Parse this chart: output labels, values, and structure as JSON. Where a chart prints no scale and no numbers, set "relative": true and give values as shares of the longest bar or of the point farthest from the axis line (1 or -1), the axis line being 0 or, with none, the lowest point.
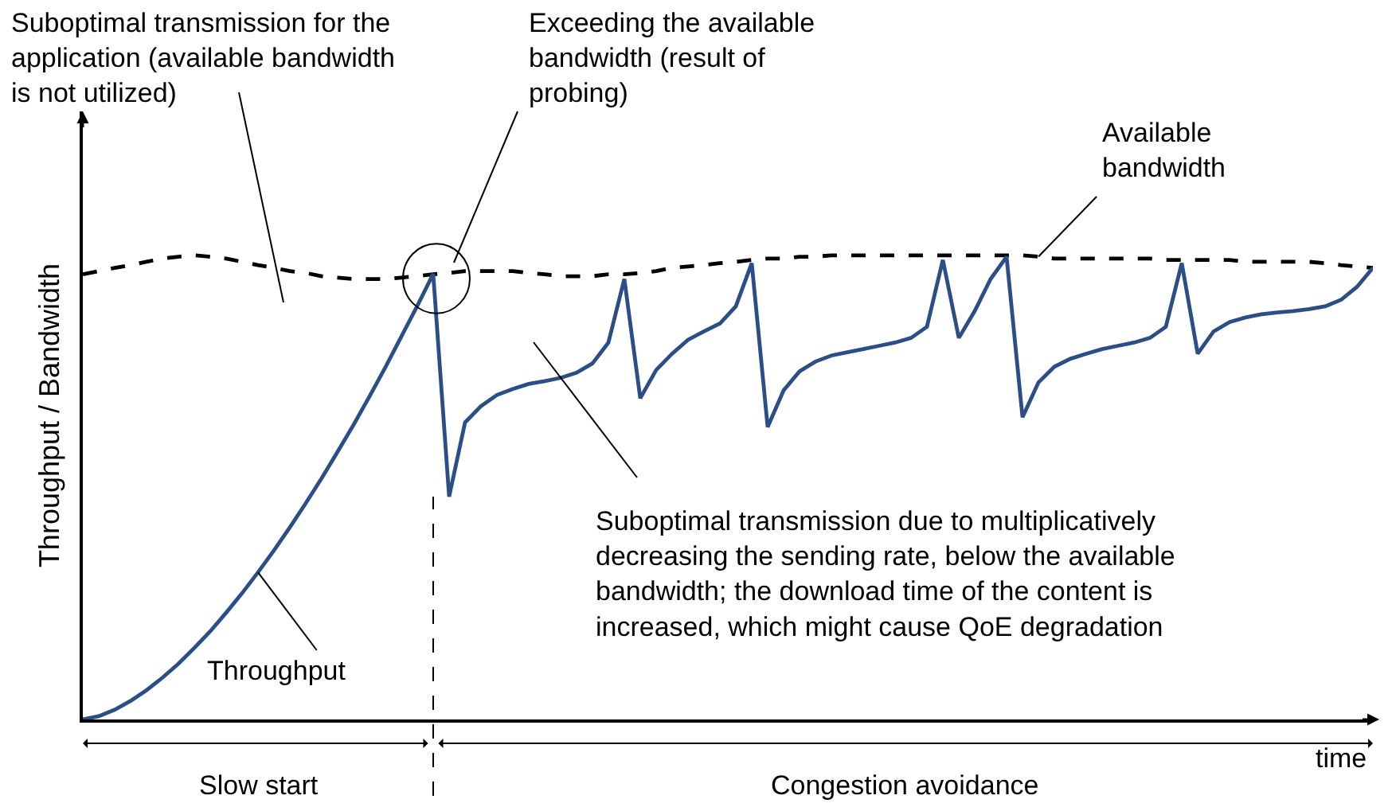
{
  "chart_data": {
    "type": "line",
    "relative": true,
    "legend": false,
    "xlabel": "time",
    "ylabel": "Throughput / Bandwidth",
    "categories": [
      null,
      null,
      null,
      null,
      null,
      null,
      null,
      null,
      null,
      null,
      null,
      null,
      null,
      null,
      null,
      null,
      null,
      null,
      null,
      null,
      null,
      null,
      null,
      null,
      null,
      null,
      null,
      null,
      null,
      null,
      null,
      null,
      null,
      null,
      null,
      null,
      null,
      null,
      null,
      null,
      null,
      null,
      null,
      null,
      null,
      null,
      null,
      null,
      null,
      null,
      null,
      null,
      null,
      null,
      null,
      null,
      null,
      null,
      null,
      null,
      null,
      null,
      null,
      null,
      null,
      null,
      null,
      null,
      null,
      null,
      null,
      null,
      null,
      null,
      null,
      null,
      null,
      null,
      null,
      null,
      null,
      null
    ],
    "series": [
      {
        "name": "Available bandwidth",
        "color": "#000000",
        "line_style": "dashed",
        "values": [
          0.959,
          0.966,
          0.973,
          0.979,
          0.986,
          0.993,
          0.997,
          1,
          0.997,
          0.993,
          0.986,
          0.979,
          0.973,
          0.966,
          0.962,
          0.955,
          0.952,
          0.949,
          0.949,
          0.949,
          0.952,
          0.955,
          0.959,
          0.962,
          0.966,
          0.966,
          0.966,
          0.966,
          0.962,
          0.959,
          0.955,
          0.955,
          0.955,
          0.959,
          0.959,
          0.962,
          0.966,
          0.973,
          0.976,
          0.979,
          0.983,
          0.986,
          0.99,
          0.993,
          0.993,
          0.997,
          0.997,
          1,
          1,
          1,
          1,
          1,
          1,
          1,
          1,
          1,
          1,
          1,
          1,
          1,
          0.997,
          0.993,
          0.993,
          0.993,
          0.993,
          0.993,
          0.993,
          0.993,
          0.99,
          0.99,
          0.99,
          0.99,
          0.99,
          0.986,
          0.986,
          0.986,
          0.986,
          0.986,
          0.983,
          0.979,
          0.976,
          0.973
        ]
      },
      {
        "name": "Throughput",
        "color": "#2b4e86",
        "line_style": "solid",
        "values": [
          0,
          0.007,
          0.021,
          0.04,
          0.063,
          0.09,
          0.12,
          0.154,
          0.19,
          0.23,
          0.272,
          0.317,
          0.364,
          0.414,
          0.466,
          0.52,
          0.577,
          0.635,
          0.696,
          0.759,
          0.825,
          0.891,
          0.96,
          0.48,
          0.64,
          0.675,
          0.699,
          0.712,
          0.723,
          0.729,
          0.736,
          0.747,
          0.767,
          0.812,
          0.949,
          0.692,
          0.753,
          0.788,
          0.818,
          0.836,
          0.853,
          0.89,
          0.983,
          0.63,
          0.709,
          0.75,
          0.771,
          0.784,
          0.791,
          0.798,
          0.805,
          0.812,
          0.822,
          0.846,
          0.99,
          0.822,
          0.88,
          0.949,
          0.997,
          0.651,
          0.726,
          0.76,
          0.777,
          0.788,
          0.798,
          0.805,
          0.812,
          0.822,
          0.846,
          0.983,
          0.788,
          0.836,
          0.856,
          0.866,
          0.873,
          0.877,
          0.88,
          0.884,
          0.89,
          0.904,
          0.932,
          0.973
        ]
      }
    ],
    "annotations": [
      "Suboptimal transmission for the application (available bandwidth is not utilized)",
      "Exceeding the available bandwidth (result of probing)",
      "Suboptimal transmission due to multiplicatively decreasing the sending rate, below the available bandwidth; the download time of the content is increased, which might cause QoE degradation",
      "Slow start",
      "Congestion avoidance"
    ]
  }
}
